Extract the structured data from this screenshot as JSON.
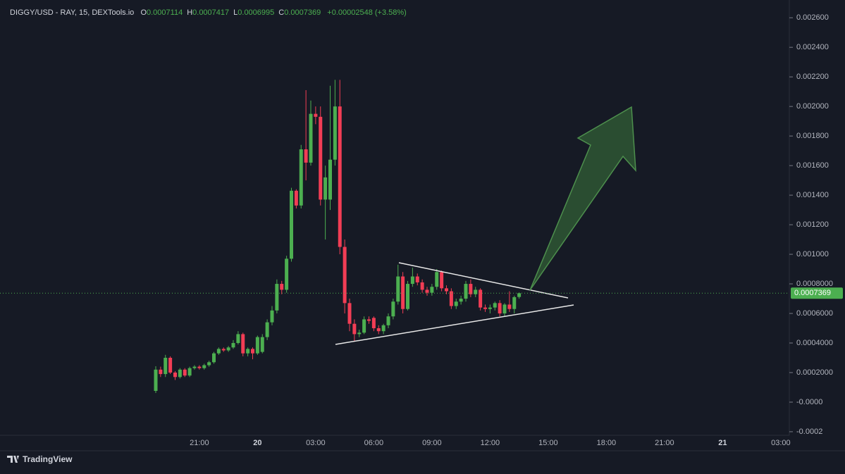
{
  "chart_data": {
    "type": "candlestick",
    "title": "DIGGY/USD - RAY, 15, DEXTools.io",
    "ohlc_header": [
      {
        "key": "O",
        "value": "0.0007114"
      },
      {
        "key": "H",
        "value": "0.0007417"
      },
      {
        "key": "L",
        "value": "0.0006995"
      },
      {
        "key": "C",
        "value": "0.0007369"
      }
    ],
    "change": "+0.00002548 (+3.58%)",
    "x": [
      "18:45",
      "19:00",
      "19:15",
      "19:30",
      "19:45",
      "20:00",
      "20:15",
      "20:30",
      "20:45",
      "21:00",
      "21:15",
      "21:30",
      "21:45",
      "22:00",
      "22:15",
      "22:30",
      "22:45",
      "23:00",
      "23:15",
      "23:30",
      "23:45",
      "00:00",
      "00:15",
      "00:30",
      "00:45",
      "01:00",
      "01:15",
      "01:30",
      "01:45",
      "02:00",
      "02:15",
      "02:30",
      "02:45",
      "03:00",
      "03:15",
      "03:30",
      "03:45",
      "04:00",
      "04:15",
      "04:30",
      "04:45",
      "05:00",
      "05:15",
      "05:30",
      "05:45",
      "06:00",
      "06:15",
      "06:30",
      "06:45",
      "07:00",
      "07:15",
      "07:30",
      "07:45",
      "08:00",
      "08:15",
      "08:30",
      "08:45",
      "09:00",
      "09:15",
      "09:30",
      "09:45",
      "10:00",
      "10:15",
      "10:30",
      "10:45",
      "11:00",
      "11:15",
      "11:30",
      "11:45",
      "12:00",
      "12:15",
      "12:30",
      "12:45",
      "13:00",
      "13:15",
      "13:30"
    ],
    "open": [
      7.6e-05,
      0.00022,
      0.00019,
      0.0003,
      0.0002,
      0.00017,
      0.00022,
      0.00018,
      0.00023,
      0.00024,
      0.00023,
      0.00025,
      0.00027,
      0.00033,
      0.00036,
      0.00035,
      0.00037,
      0.0004,
      0.00046,
      0.00033,
      0.00036,
      0.00033,
      0.00034,
      0.00044,
      0.00054,
      0.00062,
      0.0008,
      0.00076,
      0.00097,
      0.00143,
      0.00133,
      0.00171,
      0.00162,
      0.00195,
      0.00193,
      0.00137,
      0.00137,
      0.00164,
      0.002,
      0.00105,
      0.00067,
      0.00053,
      0.00046,
      0.00047,
      0.00056,
      0.00057,
      0.0005,
      0.00048,
      0.00052,
      0.00058,
      0.00068,
      0.00085,
      0.00063,
      0.0008,
      0.00085,
      0.00081,
      0.00076,
      0.00074,
      0.00078,
      0.00088,
      0.00077,
      0.00075,
      0.00065,
      0.00068,
      0.0007,
      0.0008,
      0.00073,
      0.00076,
      0.00064,
      0.00063,
      0.00064,
      0.00067,
      0.0006,
      0.00066,
      0.00063,
      0.0007114
    ],
    "high": [
      0.000243,
      0.00024,
      0.00032,
      0.00031,
      0.00021,
      0.00023,
      0.00023,
      0.00024,
      0.00025,
      0.00025,
      0.00026,
      0.00028,
      0.00034,
      0.00037,
      0.00037,
      0.00038,
      0.00042,
      0.00048,
      0.00047,
      0.00037,
      0.00037,
      0.00045,
      0.00046,
      0.00056,
      0.00065,
      0.00083,
      0.00082,
      0.00099,
      0.00145,
      0.00144,
      0.00174,
      0.00211,
      0.00204,
      0.002,
      0.002,
      0.0016,
      0.00214,
      0.00218,
      0.00218,
      0.0011,
      0.0007,
      0.00056,
      0.00049,
      0.00058,
      0.00058,
      0.00058,
      0.00052,
      0.00053,
      0.0006,
      0.0007,
      0.00093,
      0.00088,
      0.00082,
      0.00091,
      0.00087,
      0.00083,
      0.00078,
      0.0008,
      0.0009,
      0.00089,
      0.00079,
      0.00077,
      0.0007,
      0.00072,
      0.00082,
      0.00083,
      0.00078,
      0.00077,
      0.00066,
      0.00066,
      0.00068,
      0.00069,
      0.00067,
      0.00075,
      0.00072,
      0.0007417
    ],
    "low": [
      6.2e-05,
      0.00017,
      0.00017,
      0.00019,
      0.00015,
      0.00016,
      0.00017,
      0.00017,
      0.00022,
      0.00022,
      0.00022,
      0.00024,
      0.00026,
      0.00032,
      0.00034,
      0.00034,
      0.00036,
      0.00039,
      0.00031,
      0.00031,
      0.00029,
      0.00032,
      0.00033,
      0.00042,
      0.00052,
      0.0006,
      0.00073,
      0.00074,
      0.00095,
      0.00131,
      0.00131,
      0.0015,
      0.0016,
      0.00188,
      0.00133,
      0.0011,
      0.0013,
      0.0016,
      0.001,
      0.0006,
      0.00048,
      0.00041,
      0.00044,
      0.00046,
      0.00053,
      0.00048,
      0.00046,
      0.00046,
      0.0005,
      0.00056,
      0.00066,
      0.0006,
      0.00062,
      0.00078,
      0.00079,
      0.00074,
      0.00072,
      0.00072,
      0.00076,
      0.00075,
      0.00073,
      0.00063,
      0.00063,
      0.00066,
      0.00068,
      0.00071,
      0.00071,
      0.00062,
      0.00061,
      0.0006,
      0.00062,
      0.00058,
      0.00058,
      0.00061,
      0.0006,
      0.0006995
    ],
    "close": [
      0.00022,
      0.00019,
      0.0003,
      0.0002,
      0.00017,
      0.00022,
      0.00018,
      0.00023,
      0.00024,
      0.00023,
      0.00025,
      0.00027,
      0.00033,
      0.00036,
      0.00035,
      0.00037,
      0.0004,
      0.00046,
      0.00033,
      0.00036,
      0.00033,
      0.00044,
      0.00044,
      0.00054,
      0.00062,
      0.0008,
      0.00076,
      0.00097,
      0.00143,
      0.00133,
      0.00171,
      0.00162,
      0.00195,
      0.00193,
      0.00137,
      0.00152,
      0.00164,
      0.002,
      0.00105,
      0.00067,
      0.00053,
      0.00046,
      0.00047,
      0.00056,
      0.00055,
      0.0005,
      0.00048,
      0.00052,
      0.00058,
      0.00068,
      0.00085,
      0.00063,
      0.0008,
      0.00085,
      0.00081,
      0.00076,
      0.00074,
      0.00078,
      0.00088,
      0.00077,
      0.00075,
      0.00065,
      0.00068,
      0.0007,
      0.0008,
      0.00073,
      0.00076,
      0.00064,
      0.00063,
      0.00064,
      0.00067,
      0.0006,
      0.00066,
      0.00063,
      0.00071,
      0.0007369
    ],
    "up_color": "#4caf50",
    "down_color": "#f23d55",
    "ylim": [
      -0.000224,
      0.00272
    ],
    "yticks": [
      {
        "value": 0.0026,
        "label": "0.002600"
      },
      {
        "value": 0.0024,
        "label": "0.002400"
      },
      {
        "value": 0.0022,
        "label": "0.002200"
      },
      {
        "value": 0.002,
        "label": "0.002000"
      },
      {
        "value": 0.0018,
        "label": "0.001800"
      },
      {
        "value": 0.0016,
        "label": "0.001600"
      },
      {
        "value": 0.0014,
        "label": "0.001400"
      },
      {
        "value": 0.0012,
        "label": "0.001200"
      },
      {
        "value": 0.001,
        "label": "0.001000"
      },
      {
        "value": 0.0008,
        "label": "0.0008000"
      },
      {
        "value": 0.0006,
        "label": "0.0006000"
      },
      {
        "value": 0.0004,
        "label": "0.0004000"
      },
      {
        "value": 0.0002,
        "label": "0.0002000"
      },
      {
        "value": 0,
        "label": "-0.0000"
      },
      {
        "value": -0.0002,
        "label": "-0.0002"
      }
    ],
    "xticks": [
      "21:00",
      "20",
      "03:00",
      "06:00",
      "09:00",
      "12:00",
      "15:00",
      "18:00",
      "21:00",
      "21",
      "03:00"
    ],
    "last_price": {
      "value": 0.0007369,
      "label": "0.0007369"
    },
    "footer": "TradingView"
  }
}
